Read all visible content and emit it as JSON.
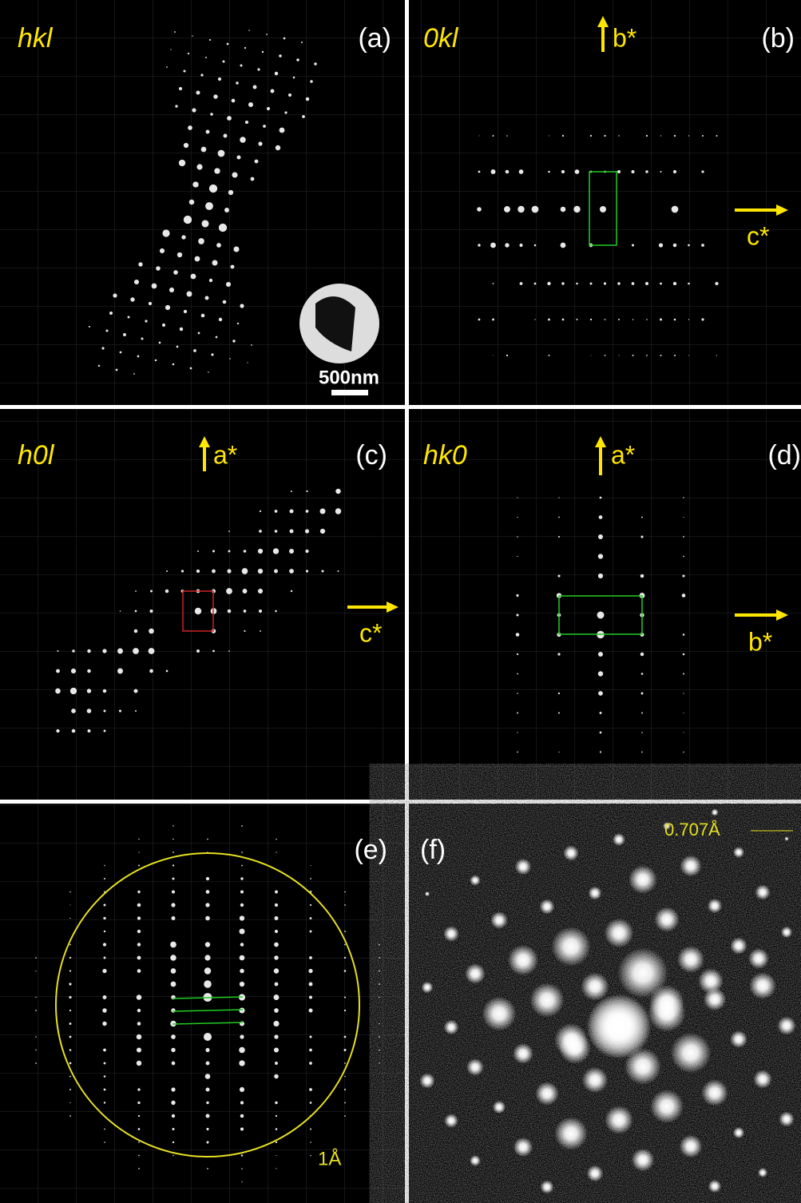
{
  "panels": [
    {
      "label": "(a)",
      "plane": "hkl",
      "scale_bar": "500nm"
    },
    {
      "label": "(b)",
      "plane": "0kl",
      "axes": [
        "b*",
        "c*"
      ]
    },
    {
      "label": "(c)",
      "plane": "h0l",
      "axes": [
        "a*",
        "c*"
      ]
    },
    {
      "label": "(d)",
      "plane": "hk0",
      "axes": [
        "a*",
        "b*"
      ]
    },
    {
      "label": "(e)",
      "circle_label": "1Å"
    },
    {
      "label": "(f)",
      "arrow_label": "0.707Å"
    }
  ]
}
